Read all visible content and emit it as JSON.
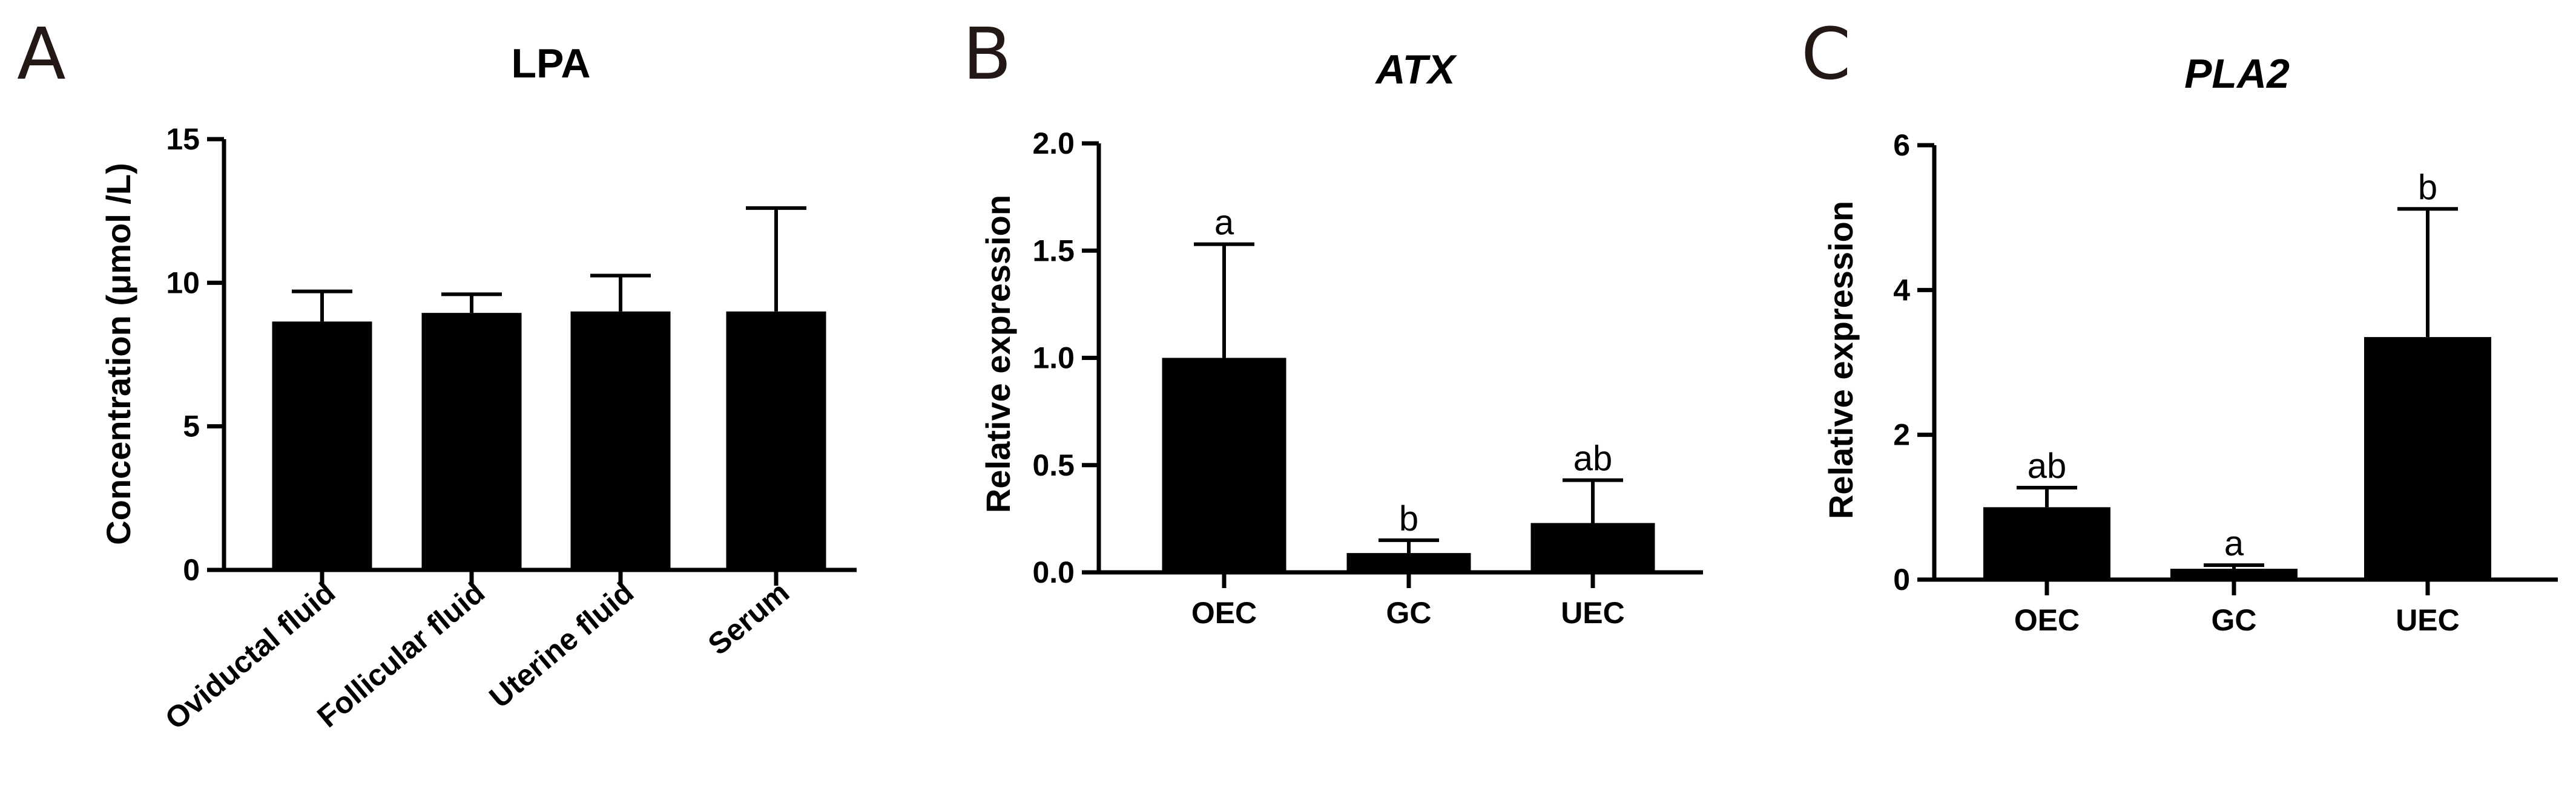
{
  "chart_data": [
    {
      "type": "bar",
      "panel": "A",
      "title": "LPA",
      "title_italic": false,
      "xlabel": "",
      "ylabel": "Concentration (μmol /L)",
      "ylim": [
        0,
        15
      ],
      "yticks": [
        "0",
        "5",
        "10",
        "15"
      ],
      "categories": [
        "Oviductal fluid",
        "Follicular fluid",
        "Uterine fluid",
        "Serum"
      ],
      "values": [
        8.65,
        8.95,
        9.0,
        9.0
      ],
      "error": [
        1.05,
        0.65,
        1.25,
        3.6
      ],
      "significance": [
        "",
        "",
        "",
        ""
      ]
    },
    {
      "type": "bar",
      "panel": "B",
      "title": "ATX",
      "title_italic": true,
      "xlabel": "",
      "ylabel": "Relative expression",
      "ylim": [
        0,
        2.0
      ],
      "yticks": [
        "0.0",
        "0.5",
        "1.0",
        "1.5",
        "2.0"
      ],
      "categories": [
        "OEC",
        "GC",
        "UEC"
      ],
      "values": [
        1.0,
        0.09,
        0.23
      ],
      "error": [
        0.53,
        0.06,
        0.2
      ],
      "significance": [
        "a",
        "b",
        "ab"
      ]
    },
    {
      "type": "bar",
      "panel": "C",
      "title": "PLA2",
      "title_italic": true,
      "xlabel": "",
      "ylabel": "Relative expression",
      "ylim": [
        0,
        6
      ],
      "yticks": [
        "0",
        "2",
        "4",
        "6"
      ],
      "categories": [
        "OEC",
        "GC",
        "UEC"
      ],
      "values": [
        1.0,
        0.15,
        3.35
      ],
      "error": [
        0.27,
        0.05,
        1.77
      ],
      "significance": [
        "ab",
        "a",
        "b"
      ]
    }
  ]
}
